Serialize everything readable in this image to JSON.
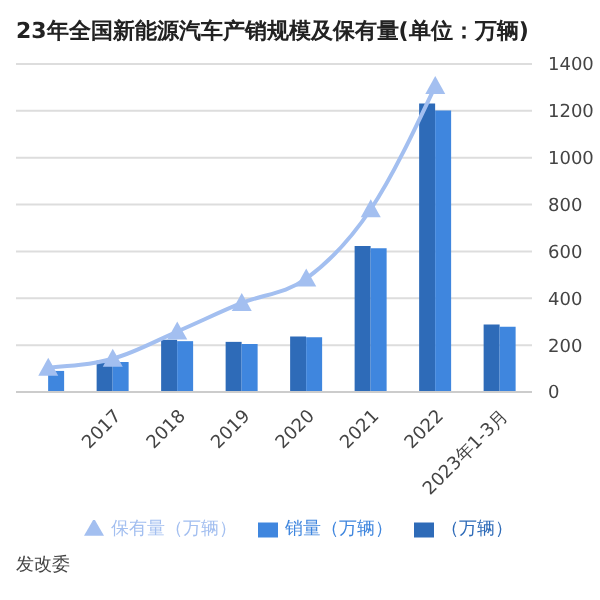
{
  "chart_data": {
    "type": "bar",
    "title": "23年全国新能源汽车产销规模及保有量(单位：万辆)",
    "categories": [
      null,
      "2017",
      "2018",
      "2019",
      "2020",
      "2021",
      "2022",
      "2023年1-3月"
    ],
    "series": [
      {
        "name": "（万辆）",
        "color": "#2e6bb8",
        "values": [
          null,
          134,
          223,
          214,
          237,
          623,
          1231,
          288
        ]
      },
      {
        "name": "销量（万辆）",
        "color": "#3f86de",
        "values": [
          90,
          128,
          217,
          205,
          234,
          614,
          1202,
          279
        ]
      },
      {
        "name": "保有量（万辆）",
        "type": "line",
        "color": "#a3bff0",
        "marker": "triangle",
        "values": [
          104,
          142,
          258,
          380,
          484,
          780,
          1306,
          null
        ]
      }
    ],
    "ylim": [
      0,
      1400
    ],
    "yticks": [
      0,
      200,
      400,
      600,
      800,
      1000,
      1200,
      1400
    ],
    "grid": "y",
    "legend": "bottom",
    "annotations": [
      "发改委"
    ]
  }
}
